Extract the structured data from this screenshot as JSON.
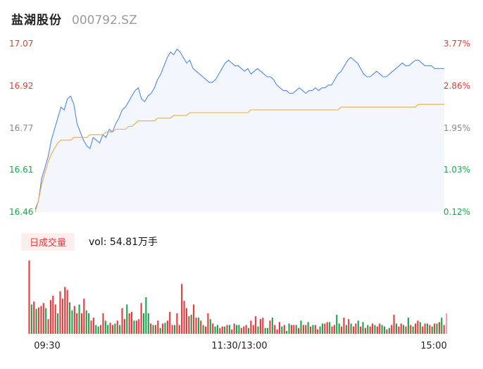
{
  "header": {
    "name": "盐湖股份",
    "code": "000792.SZ"
  },
  "volume_tab": {
    "label": "日成交量",
    "volume_text": "vol: 54.81万手"
  },
  "colors": {
    "price_line": "#4f86e8",
    "avg_line": "#f2a93b",
    "up": "#e5393b",
    "down": "#1aa34a",
    "neutral": "#888888",
    "area_fill": "#f3f6fc"
  },
  "chart_data": [
    {
      "type": "line",
      "title": "",
      "x_tick_labels": [
        "09:30",
        "11:30/13:00",
        "15:00"
      ],
      "y_tick_labels_left": [
        "17.07",
        "16.92",
        "16.77",
        "16.61",
        "16.46"
      ],
      "y_tick_labels_right": [
        "3.77%",
        "2.86%",
        "1.95%",
        "1.03%",
        "0.12%"
      ],
      "ylim": [
        16.46,
        17.07
      ],
      "series": [
        {
          "values": [
            16.47,
            16.5,
            16.58,
            16.62,
            16.66,
            16.72,
            16.76,
            16.8,
            16.84,
            16.83,
            16.87,
            16.88,
            16.85,
            16.78,
            16.75,
            16.72,
            16.7,
            16.69,
            16.73,
            16.72,
            16.71,
            16.74,
            16.73,
            16.76,
            16.75,
            16.78,
            16.8,
            16.83,
            16.84,
            16.86,
            16.88,
            16.9,
            16.91,
            16.87,
            16.86,
            16.88,
            16.89,
            16.91,
            16.94,
            16.96,
            16.99,
            17.02,
            17.04,
            17.03,
            17.05,
            17.04,
            17.02,
            17.0,
            17.01,
            16.98,
            16.97,
            16.96,
            16.95,
            16.94,
            16.93,
            16.93,
            16.94,
            16.96,
            16.98,
            17.0,
            17.01,
            17.0,
            16.99,
            16.99,
            16.98,
            16.97,
            16.98,
            16.96,
            16.97,
            16.98,
            16.97,
            16.96,
            16.95,
            16.95,
            16.94,
            16.92,
            16.91,
            16.9,
            16.9,
            16.89,
            16.89,
            16.9,
            16.91,
            16.9,
            16.89,
            16.9,
            16.9,
            16.91,
            16.9,
            16.91,
            16.91,
            16.92,
            16.92,
            16.94,
            16.96,
            16.97,
            16.99,
            17.01,
            17.02,
            17.01,
            17.0,
            16.98,
            16.96,
            16.95,
            16.95,
            16.96,
            16.97,
            16.96,
            16.95,
            16.95,
            16.96,
            16.97,
            16.98,
            16.99,
            17.0,
            16.99,
            16.99,
            17.0,
            17.01,
            17.01,
            17.0,
            16.99,
            16.99,
            16.99,
            16.98,
            16.98,
            16.98,
            16.98
          ]
        },
        {
          "values": [
            16.46,
            16.5,
            16.56,
            16.6,
            16.64,
            16.67,
            16.69,
            16.71,
            16.72,
            16.72,
            16.72,
            16.72,
            16.73,
            16.73,
            16.73,
            16.73,
            16.73,
            16.74,
            16.74,
            16.74,
            16.74,
            16.74,
            16.75,
            16.75,
            16.75,
            16.76,
            16.76,
            16.76,
            16.76,
            16.77,
            16.77,
            16.78,
            16.79,
            16.79,
            16.79,
            16.79,
            16.79,
            16.79,
            16.8,
            16.8,
            16.8,
            16.8,
            16.8,
            16.81,
            16.81,
            16.81,
            16.81,
            16.81,
            16.82,
            16.82,
            16.82,
            16.82,
            16.82,
            16.82,
            16.82,
            16.82,
            16.82,
            16.82,
            16.82,
            16.82,
            16.82,
            16.82,
            16.82,
            16.82,
            16.82,
            16.82,
            16.82,
            16.83,
            16.83,
            16.83,
            16.83,
            16.83,
            16.83,
            16.83,
            16.83,
            16.83,
            16.83,
            16.83,
            16.83,
            16.83,
            16.83,
            16.83,
            16.83,
            16.83,
            16.83,
            16.83,
            16.83,
            16.83,
            16.83,
            16.83,
            16.83,
            16.83,
            16.83,
            16.83,
            16.83,
            16.84,
            16.84,
            16.84,
            16.84,
            16.84,
            16.84,
            16.84,
            16.84,
            16.84,
            16.84,
            16.84,
            16.84,
            16.84,
            16.84,
            16.84,
            16.84,
            16.84,
            16.84,
            16.84,
            16.84,
            16.84,
            16.84,
            16.84,
            16.84,
            16.85,
            16.85,
            16.85,
            16.85,
            16.85,
            16.85,
            16.85,
            16.85,
            16.85
          ]
        }
      ]
    },
    {
      "type": "bar",
      "title": "",
      "x_tick_labels": [
        "09:30",
        "11:30/13:00",
        "15:00"
      ],
      "ylim": [
        0,
        100
      ],
      "values": [
        100,
        40,
        44,
        34,
        36,
        38,
        42,
        35,
        20,
        46,
        52,
        40,
        28,
        58,
        48,
        64,
        60,
        43,
        32,
        38,
        28,
        40,
        28,
        48,
        32,
        28,
        18,
        22,
        12,
        10,
        12,
        28,
        18,
        12,
        15,
        12,
        14,
        18,
        12,
        35,
        20,
        40,
        28,
        30,
        18,
        18,
        20,
        42,
        28,
        50,
        28,
        14,
        12,
        12,
        18,
        8,
        14,
        15,
        18,
        30,
        12,
        12,
        28,
        12,
        68,
        45,
        35,
        24,
        26,
        40,
        22,
        22,
        18,
        12,
        10,
        28,
        20,
        14,
        10,
        12,
        8,
        10,
        10,
        12,
        12,
        6,
        14,
        12,
        12,
        8,
        10,
        12,
        8,
        18,
        12,
        24,
        10,
        20,
        22,
        8,
        8,
        18,
        22,
        12,
        6,
        16,
        10,
        12,
        4,
        14,
        12,
        12,
        12,
        8,
        18,
        12,
        12,
        16,
        10,
        12,
        12,
        6,
        10,
        14,
        14,
        16,
        16,
        10,
        12,
        26,
        14,
        10,
        22,
        12,
        20,
        14,
        10,
        14,
        18,
        10,
        16,
        8,
        12,
        10,
        14,
        12,
        10,
        14,
        12,
        10,
        6,
        8,
        12,
        26,
        14,
        10,
        14,
        12,
        10,
        22,
        12,
        10,
        14,
        18,
        16,
        10,
        14,
        14,
        12,
        10,
        14,
        14,
        16,
        22,
        12,
        28
      ],
      "up_down": [
        "up",
        "down",
        "up",
        "down",
        "up",
        "up",
        "up",
        "down",
        "up",
        "up",
        "up",
        "up",
        "down",
        "up",
        "up",
        "up",
        "up",
        "down",
        "down",
        "up",
        "up",
        "down",
        "up",
        "up",
        "down",
        "down",
        "up",
        "up",
        "down",
        "down",
        "up",
        "up",
        "down",
        "down",
        "up",
        "up",
        "down",
        "up",
        "down",
        "up",
        "up",
        "down",
        "up",
        "up",
        "down",
        "up",
        "up",
        "up",
        "down",
        "down",
        "down",
        "up",
        "down",
        "up",
        "up",
        "down",
        "up",
        "down",
        "up",
        "up",
        "up",
        "down",
        "up",
        "up",
        "up",
        "up",
        "up",
        "up",
        "down",
        "up",
        "up",
        "down",
        "up",
        "down",
        "up",
        "up",
        "down",
        "up",
        "down",
        "down",
        "up",
        "up",
        "down",
        "up",
        "down",
        "up",
        "up",
        "down",
        "down",
        "up",
        "up",
        "up",
        "down",
        "up",
        "up",
        "up",
        "down",
        "up",
        "up",
        "down",
        "down",
        "up",
        "down",
        "up",
        "up",
        "up",
        "down",
        "up",
        "down",
        "down",
        "up",
        "up",
        "down",
        "up",
        "down",
        "up",
        "up",
        "down",
        "up",
        "down",
        "up",
        "up",
        "down",
        "down",
        "up",
        "up",
        "down",
        "up",
        "up",
        "down",
        "down",
        "up",
        "up",
        "down",
        "up",
        "down",
        "up",
        "up",
        "down",
        "up",
        "down",
        "up",
        "down",
        "up",
        "up",
        "down",
        "up",
        "up",
        "down",
        "down",
        "up",
        "down",
        "up",
        "up",
        "down",
        "up",
        "up",
        "down",
        "up",
        "down",
        "up",
        "down",
        "up",
        "up",
        "down",
        "up",
        "up",
        "down",
        "up",
        "down",
        "up",
        "down",
        "up",
        "down",
        "up",
        "neutral"
      ]
    }
  ]
}
